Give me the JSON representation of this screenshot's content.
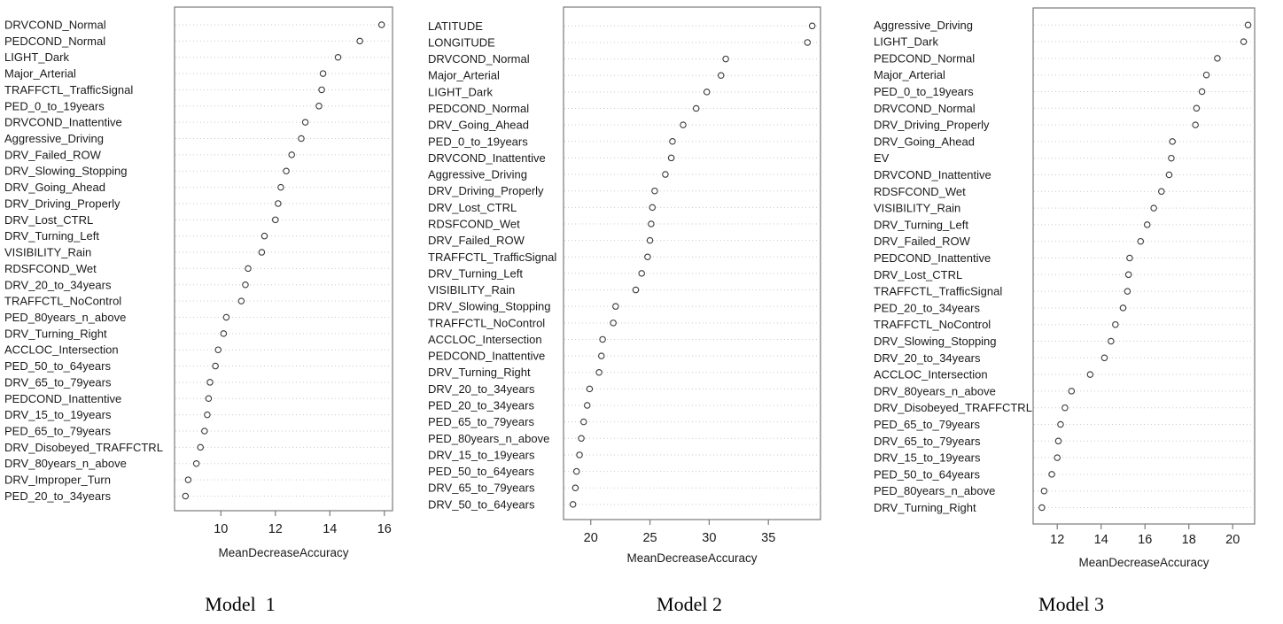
{
  "figure": {
    "background_color": "#ffffff",
    "text_color": "#1a1a1a",
    "grid_color": "#c9c9c9",
    "border_color": "#7a7a7a",
    "dot_stroke_color": "#3a3a3a"
  },
  "chart_data": [
    {
      "type": "scatter",
      "subtype": "dotchart",
      "title": "",
      "caption": "Model  1",
      "xlabel": "MeanDecreaseAccuracy",
      "ylabel": "",
      "grid": "dotted-horizontal",
      "xlim": [
        8.3,
        16.3
      ],
      "xticks": [
        10,
        12,
        14,
        16
      ],
      "categories": [
        "DRVCOND_Normal",
        "PEDCOND_Normal",
        "LIGHT_Dark",
        "Major_Arterial",
        "TRAFFCTL_TrafficSignal",
        "PED_0_to_19years",
        "DRVCOND_Inattentive",
        "Aggressive_Driving",
        "DRV_Failed_ROW",
        "DRV_Slowing_Stopping",
        "DRV_Going_Ahead",
        "DRV_Driving_Properly",
        "DRV_Lost_CTRL",
        "DRV_Turning_Left",
        "VISIBILITY_Rain",
        "RDSFCOND_Wet",
        "DRV_20_to_34years",
        "TRAFFCTL_NoControl",
        "PED_80years_n_above",
        "DRV_Turning_Right",
        "ACCLOC_Intersection",
        "PED_50_to_64years",
        "DRV_65_to_79years",
        "PEDCOND_Inattentive",
        "DRV_15_to_19years",
        "PED_65_to_79years",
        "DRV_Disobeyed_TRAFFCTRL",
        "DRV_80years_n_above",
        "DRV_Improper_Turn",
        "PED_20_to_34years"
      ],
      "values": [
        15.9,
        15.1,
        14.3,
        13.75,
        13.7,
        13.6,
        13.1,
        12.95,
        12.6,
        12.4,
        12.2,
        12.1,
        12.0,
        11.6,
        11.5,
        11.0,
        10.9,
        10.75,
        10.2,
        10.1,
        9.9,
        9.8,
        9.6,
        9.55,
        9.5,
        9.4,
        9.25,
        9.1,
        8.8,
        8.7
      ]
    },
    {
      "type": "scatter",
      "subtype": "dotchart",
      "title": "",
      "caption": "Model 2",
      "xlabel": "MeanDecreaseAccuracy",
      "ylabel": "",
      "grid": "dotted-horizontal",
      "xlim": [
        17.7,
        39.4
      ],
      "xticks": [
        20,
        25,
        30,
        35
      ],
      "categories": [
        "LATITUDE",
        "LONGITUDE",
        "DRVCOND_Normal",
        "Major_Arterial",
        "LIGHT_Dark",
        "PEDCOND_Normal",
        "DRV_Going_Ahead",
        "PED_0_to_19years",
        "DRVCOND_Inattentive",
        "Aggressive_Driving",
        "DRV_Driving_Properly",
        "DRV_Lost_CTRL",
        "RDSFCOND_Wet",
        "DRV_Failed_ROW",
        "TRAFFCTL_TrafficSignal",
        "DRV_Turning_Left",
        "VISIBILITY_Rain",
        "DRV_Slowing_Stopping",
        "TRAFFCTL_NoControl",
        "ACCLOC_Intersection",
        "PEDCOND_Inattentive",
        "DRV_Turning_Right",
        "DRV_20_to_34years",
        "PED_20_to_34years",
        "PED_65_to_79years",
        "PED_80years_n_above",
        "DRV_15_to_19years",
        "PED_50_to_64years",
        "DRV_65_to_79years",
        "DRV_50_to_64years"
      ],
      "values": [
        38.7,
        38.3,
        31.4,
        31.0,
        29.8,
        28.9,
        27.8,
        26.9,
        26.8,
        26.3,
        25.4,
        25.2,
        25.1,
        25.0,
        24.8,
        24.3,
        23.8,
        22.1,
        21.9,
        21.0,
        20.9,
        20.7,
        19.9,
        19.7,
        19.4,
        19.2,
        19.05,
        18.8,
        18.7,
        18.5
      ]
    },
    {
      "type": "scatter",
      "subtype": "dotchart",
      "title": "",
      "caption": "Model 3",
      "xlabel": "MeanDecreaseAccuracy",
      "ylabel": "",
      "grid": "dotted-horizontal",
      "xlim": [
        10.9,
        21.0
      ],
      "xticks": [
        12,
        14,
        16,
        18,
        20
      ],
      "categories": [
        "Aggressive_Driving",
        "LIGHT_Dark",
        "PEDCOND_Normal",
        "Major_Arterial",
        "PED_0_to_19years",
        "DRVCOND_Normal",
        "DRV_Driving_Properly",
        "DRV_Going_Ahead",
        "EV",
        "DRVCOND_Inattentive",
        "RDSFCOND_Wet",
        "VISIBILITY_Rain",
        "DRV_Turning_Left",
        "DRV_Failed_ROW",
        "PEDCOND_Inattentive",
        "DRV_Lost_CTRL",
        "TRAFFCTL_TrafficSignal",
        "PED_20_to_34years",
        "TRAFFCTL_NoControl",
        "DRV_Slowing_Stopping",
        "DRV_20_to_34years",
        "ACCLOC_Intersection",
        "DRV_80years_n_above",
        "DRV_Disobeyed_TRAFFCTRL",
        "PED_65_to_79years",
        "DRV_65_to_79years",
        "DRV_15_to_19years",
        "PED_50_to_64years",
        "PED_80years_n_above",
        "DRV_Turning_Right"
      ],
      "values": [
        20.7,
        20.5,
        19.3,
        18.8,
        18.6,
        18.35,
        18.3,
        17.25,
        17.2,
        17.1,
        16.75,
        16.4,
        16.1,
        15.8,
        15.3,
        15.25,
        15.2,
        15.0,
        14.65,
        14.45,
        14.15,
        13.5,
        12.65,
        12.35,
        12.15,
        12.05,
        12.0,
        11.75,
        11.4,
        11.3
      ]
    }
  ]
}
